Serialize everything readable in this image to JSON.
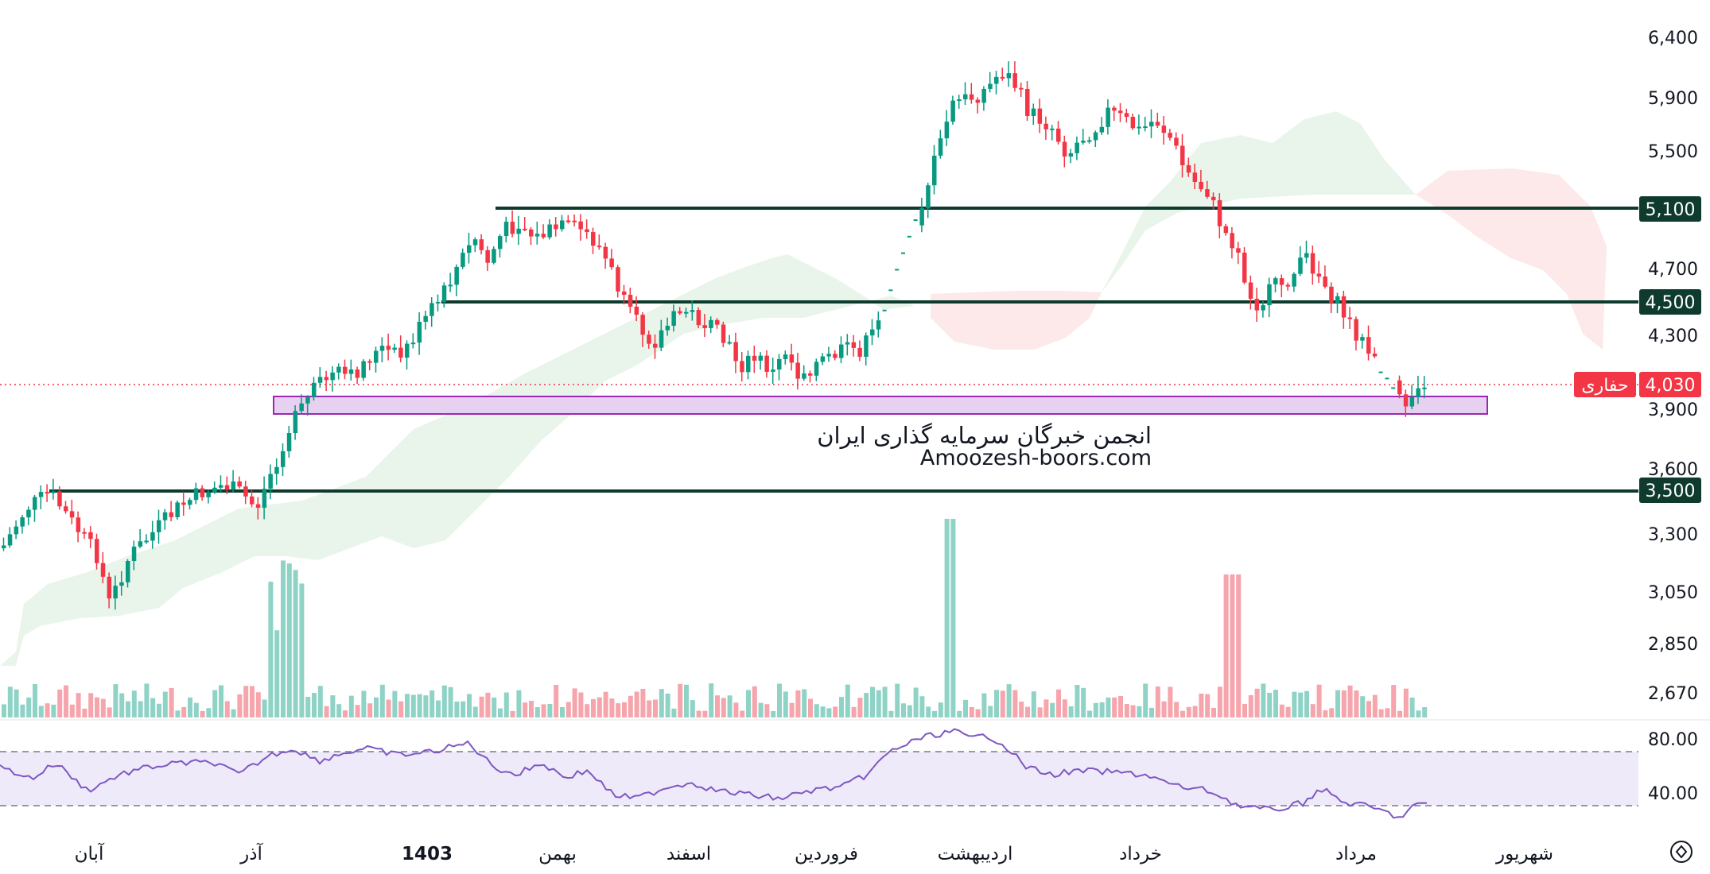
{
  "watermark": {
    "line1": "انجمن خبرگان سرمایه گذاری ایران",
    "line2": "Amoozesh-boors.com"
  },
  "price_badge": {
    "name": "حفاری",
    "value": "4,030",
    "color": "#f23645"
  },
  "chart_data": {
    "type": "candlestick",
    "price_axis": {
      "ticks": [
        6400,
        5900,
        5500,
        4700,
        4300,
        3900,
        3600,
        3300,
        3050,
        2850,
        2670
      ],
      "tick_labels": [
        "6,400",
        "5,900",
        "5,500",
        "4,700",
        "4,300",
        "3,900",
        "3,600",
        "3,300",
        "3,050",
        "2,850",
        "2,670"
      ],
      "scale": "log"
    },
    "level_lines": [
      {
        "value": 5100,
        "label": "5,100"
      },
      {
        "value": 4500,
        "label": "4,500"
      },
      {
        "value": 3500,
        "label": "3,500"
      }
    ],
    "current_price": 4030,
    "support_zone": [
      3860,
      3950
    ],
    "time_axis": [
      "آبان",
      "آذر",
      "1403",
      "بهمن",
      "اسفند",
      "فروردین",
      "اردیبهشت",
      "خرداد",
      "مرداد",
      "شهریور"
    ],
    "rsi": {
      "ticks": [
        "80.00",
        "40.00"
      ],
      "upper_band": 70,
      "lower_band": 30
    },
    "colors": {
      "up": "#089981",
      "down": "#f23645",
      "level": "#0e3b2e",
      "zone": "#9c27b0",
      "rsi_line": "#7e57c2",
      "cloud_bull": "#e5f3e8",
      "cloud_bear": "#fde4e6"
    }
  }
}
